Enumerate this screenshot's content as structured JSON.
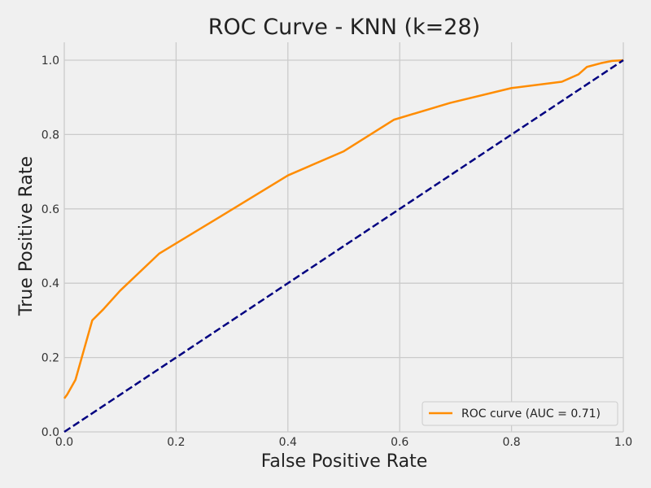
{
  "chart_data": {
    "type": "line",
    "title": "ROC Curve - KNN (k=28)",
    "xlabel": "False Positive Rate",
    "ylabel": "True Positive Rate",
    "xlim": [
      0.0,
      1.0
    ],
    "ylim": [
      0.0,
      1.0
    ],
    "xticks": [
      "0.0",
      "0.2",
      "0.4",
      "0.6",
      "0.8",
      "1.0"
    ],
    "yticks": [
      "0.0",
      "0.2",
      "0.4",
      "0.6",
      "0.8",
      "1.0"
    ],
    "grid": true,
    "legend_position": "lower-right",
    "background_color": "#f0f0f0",
    "grid_color": "#cbcbcb",
    "series": [
      {
        "name": "ROC curve (AUC = 0.71)",
        "color": "#ff8c00",
        "style": "solid",
        "x": [
          0.0,
          0.005,
          0.02,
          0.035,
          0.05,
          0.07,
          0.1,
          0.17,
          0.28,
          0.4,
          0.5,
          0.59,
          0.69,
          0.8,
          0.89,
          0.92,
          0.935,
          0.96,
          0.98,
          1.0
        ],
        "y": [
          0.09,
          0.1,
          0.14,
          0.22,
          0.3,
          0.33,
          0.38,
          0.48,
          0.58,
          0.69,
          0.755,
          0.84,
          0.885,
          0.925,
          0.942,
          0.962,
          0.982,
          0.992,
          0.998,
          1.0
        ]
      },
      {
        "color": "#000080",
        "style": "dashed",
        "x": [
          0.0,
          1.0
        ],
        "y": [
          0.0,
          1.0
        ]
      }
    ]
  }
}
